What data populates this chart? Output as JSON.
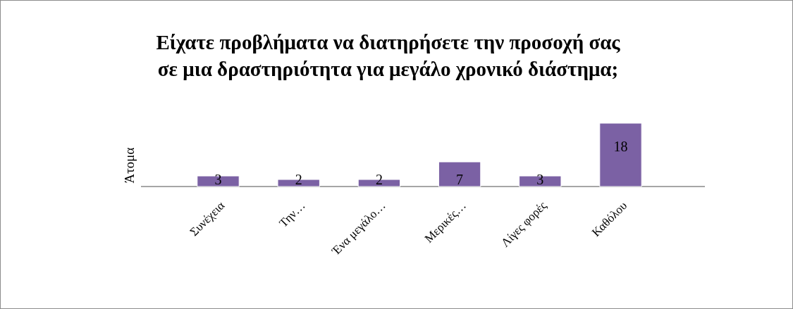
{
  "chart_data": {
    "type": "bar",
    "title": "Είχατε προβλήματα να διατηρήσετε την προσοχή σας σε μια δραστηριότητα για μεγάλο χρονικό διάστημα;",
    "ylabel": "Άτομα",
    "categories": [
      "Συνέχεια",
      "Την…",
      "Ένα μεγάλο…",
      "Μερικές…",
      "Λίγες φορές",
      "Καθόλου"
    ],
    "values": [
      3,
      2,
      2,
      7,
      3,
      18
    ],
    "color": "#7b61a4",
    "data_labels": true
  }
}
